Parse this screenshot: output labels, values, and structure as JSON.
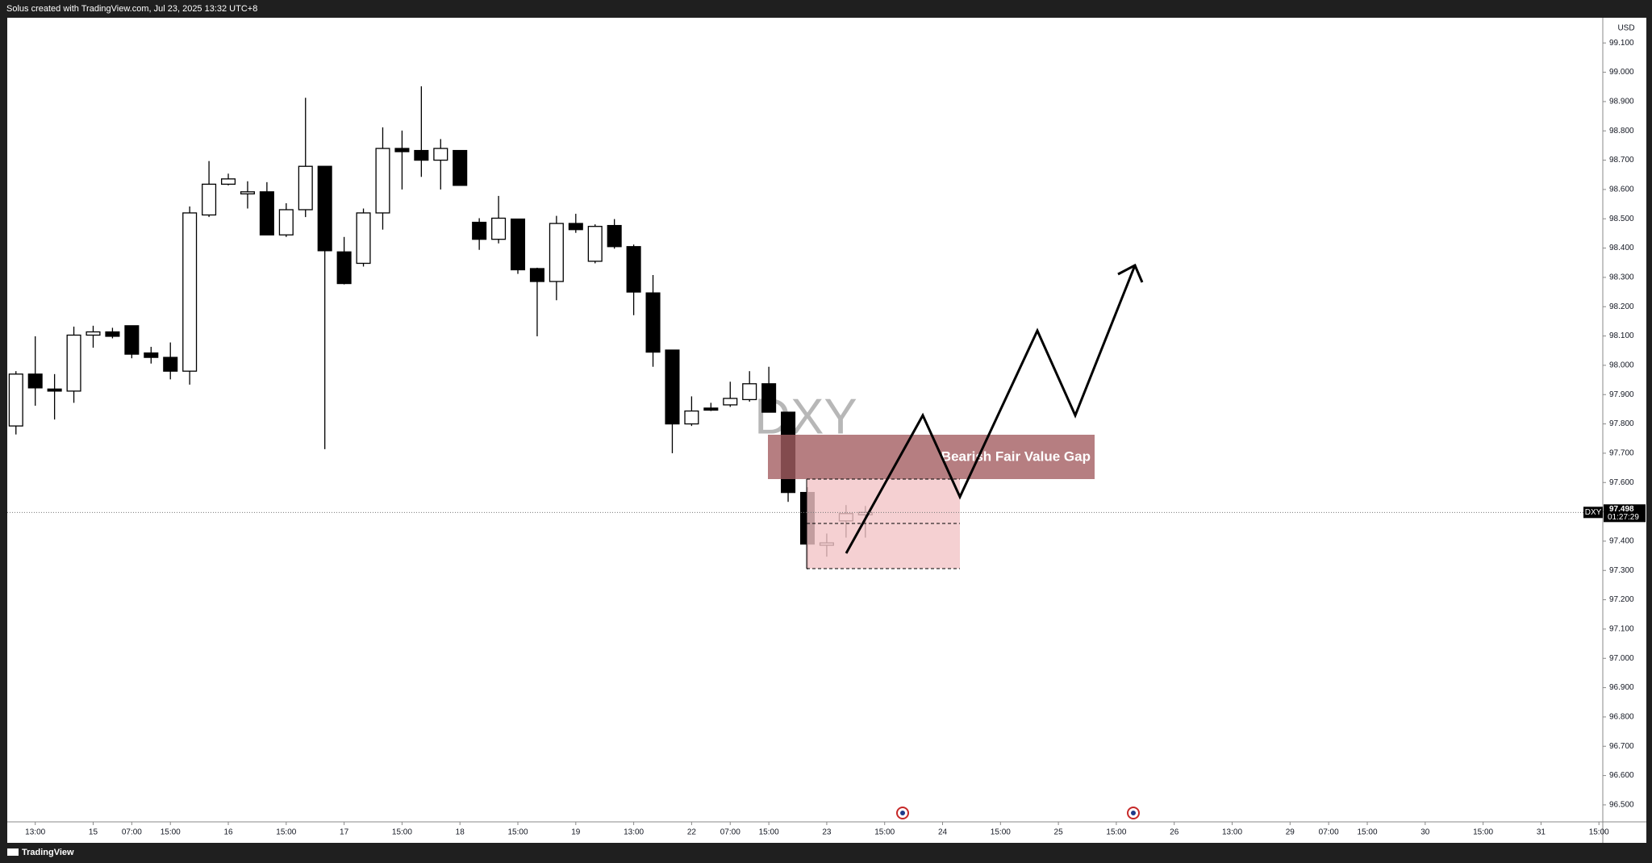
{
  "chart_data": {
    "type": "candlestick",
    "title": "Solus created with TradingView.com, Jul 23, 2025 13:32 UTC+8",
    "symbol": "DXY",
    "y_axis_unit": "USD",
    "annotations": [
      "Bearish Fair Value Gap"
    ],
    "brand": "TradingView",
    "last_price": 97.498,
    "countdown": "01:27:29",
    "up_color": "#ffffff",
    "down_color": "#000000",
    "x": [
      0,
      1,
      2,
      3,
      4,
      5,
      6,
      7,
      8,
      9,
      10,
      11,
      12,
      13,
      14,
      15,
      16,
      17,
      18,
      19,
      20,
      21,
      22,
      23,
      24,
      25,
      26,
      27,
      28,
      29,
      30,
      31,
      32,
      33,
      34,
      35,
      36,
      37,
      38,
      39,
      40,
      41,
      42,
      43,
      44
    ],
    "open": [
      97.793,
      97.97,
      97.919,
      97.912,
      98.103,
      98.114,
      98.135,
      98.042,
      98.027,
      97.98,
      98.513,
      98.618,
      98.585,
      98.592,
      98.445,
      98.531,
      98.679,
      98.387,
      98.348,
      98.52,
      98.74,
      98.733,
      98.7,
      98.733,
      98.488,
      98.43,
      98.499,
      98.33,
      98.286,
      98.484,
      98.355,
      98.477,
      98.405,
      98.247,
      98.052,
      97.8,
      97.854,
      97.865,
      97.883,
      97.937,
      97.84,
      97.566,
      97.386,
      97.469,
      97.49
    ],
    "high": [
      97.98,
      98.099,
      97.97,
      98.132,
      98.135,
      98.128,
      98.135,
      98.063,
      98.078,
      98.542,
      98.697,
      98.654,
      98.628,
      98.625,
      98.553,
      98.913,
      98.679,
      98.438,
      98.535,
      98.812,
      98.801,
      98.952,
      98.772,
      98.733,
      98.502,
      98.578,
      98.499,
      98.333,
      98.51,
      98.517,
      98.481,
      98.499,
      98.412,
      98.308,
      98.052,
      97.894,
      97.872,
      97.944,
      97.98,
      97.995,
      97.84,
      97.584,
      97.426,
      97.523,
      97.52
    ],
    "low": [
      97.764,
      97.862,
      97.815,
      97.872,
      98.06,
      98.092,
      98.024,
      98.006,
      97.952,
      97.934,
      98.506,
      98.614,
      98.535,
      98.445,
      98.438,
      98.506,
      97.714,
      98.276,
      98.337,
      98.463,
      98.6,
      98.643,
      98.6,
      98.614,
      98.394,
      98.416,
      98.312,
      98.099,
      98.222,
      98.452,
      98.348,
      98.398,
      98.171,
      97.995,
      97.7,
      97.793,
      97.844,
      97.858,
      97.876,
      97.84,
      97.534,
      97.304,
      97.347,
      97.412,
      97.412
    ],
    "close": [
      97.97,
      97.923,
      97.912,
      98.103,
      98.114,
      98.099,
      98.038,
      98.027,
      97.98,
      98.52,
      98.618,
      98.636,
      98.592,
      98.445,
      98.531,
      98.679,
      98.391,
      98.279,
      98.52,
      98.74,
      98.729,
      98.7,
      98.74,
      98.614,
      98.43,
      98.502,
      98.326,
      98.286,
      98.484,
      98.463,
      98.474,
      98.405,
      98.25,
      98.045,
      97.8,
      97.844,
      97.847,
      97.887,
      97.937,
      97.84,
      97.566,
      97.39,
      97.394,
      97.494,
      97.498
    ],
    "xlim": [
      -0.45,
      82.2
    ],
    "xticks": [
      {
        "value": 1,
        "label": "13:00"
      },
      {
        "value": 4,
        "label": "15"
      },
      {
        "value": 6,
        "label": "07:00"
      },
      {
        "value": 8,
        "label": "15:00"
      },
      {
        "value": 11,
        "label": "16"
      },
      {
        "value": 14,
        "label": "15:00"
      },
      {
        "value": 17,
        "label": "17"
      },
      {
        "value": 20,
        "label": "15:00"
      },
      {
        "value": 23,
        "label": "18"
      },
      {
        "value": 26,
        "label": "15:00"
      },
      {
        "value": 29,
        "label": "19"
      },
      {
        "value": 32,
        "label": "13:00"
      },
      {
        "value": 35,
        "label": "22"
      },
      {
        "value": 37,
        "label": "07:00"
      },
      {
        "value": 39,
        "label": "15:00"
      },
      {
        "value": 42,
        "label": "23"
      },
      {
        "value": 45,
        "label": "15:00"
      },
      {
        "value": 48,
        "label": "24"
      },
      {
        "value": 51,
        "label": "15:00"
      },
      {
        "value": 54,
        "label": "25"
      },
      {
        "value": 57,
        "label": "15:00"
      },
      {
        "value": 60,
        "label": "26"
      },
      {
        "value": 63,
        "label": "13:00"
      },
      {
        "value": 66,
        "label": "29"
      },
      {
        "value": 68,
        "label": "07:00"
      },
      {
        "value": 70,
        "label": "15:00"
      },
      {
        "value": 73,
        "label": "30"
      },
      {
        "value": 76,
        "label": "15:00"
      },
      {
        "value": 79,
        "label": "31"
      },
      {
        "value": 82,
        "label": "15:00"
      }
    ],
    "ylim": [
      96.442,
      99.186
    ],
    "yticks": [
      {
        "value": 96.5,
        "label": "96.500"
      },
      {
        "value": 96.6,
        "label": "96.600"
      },
      {
        "value": 96.7,
        "label": "96.700"
      },
      {
        "value": 96.8,
        "label": "96.800"
      },
      {
        "value": 96.9,
        "label": "96.900"
      },
      {
        "value": 97.0,
        "label": "97.000"
      },
      {
        "value": 97.1,
        "label": "97.100"
      },
      {
        "value": 97.2,
        "label": "97.200"
      },
      {
        "value": 97.3,
        "label": "97.300"
      },
      {
        "value": 97.4,
        "label": "97.400"
      },
      {
        "value": 97.5,
        "label": "97.500"
      },
      {
        "value": 97.6,
        "label": "97.600"
      },
      {
        "value": 97.7,
        "label": "97.700"
      },
      {
        "value": 97.8,
        "label": "97.800"
      },
      {
        "value": 97.9,
        "label": "97.900"
      },
      {
        "value": 98.0,
        "label": "98.000"
      },
      {
        "value": 98.1,
        "label": "98.100"
      },
      {
        "value": 98.2,
        "label": "98.200"
      },
      {
        "value": 98.3,
        "label": "98.300"
      },
      {
        "value": 98.4,
        "label": "98.400"
      },
      {
        "value": 98.5,
        "label": "98.500"
      },
      {
        "value": 98.6,
        "label": "98.600"
      },
      {
        "value": 98.7,
        "label": "98.700"
      },
      {
        "value": 98.8,
        "label": "98.800"
      },
      {
        "value": 98.9,
        "label": "98.900"
      },
      {
        "value": 99.0,
        "label": "99.000"
      },
      {
        "value": 99.1,
        "label": "99.100"
      }
    ]
  }
}
